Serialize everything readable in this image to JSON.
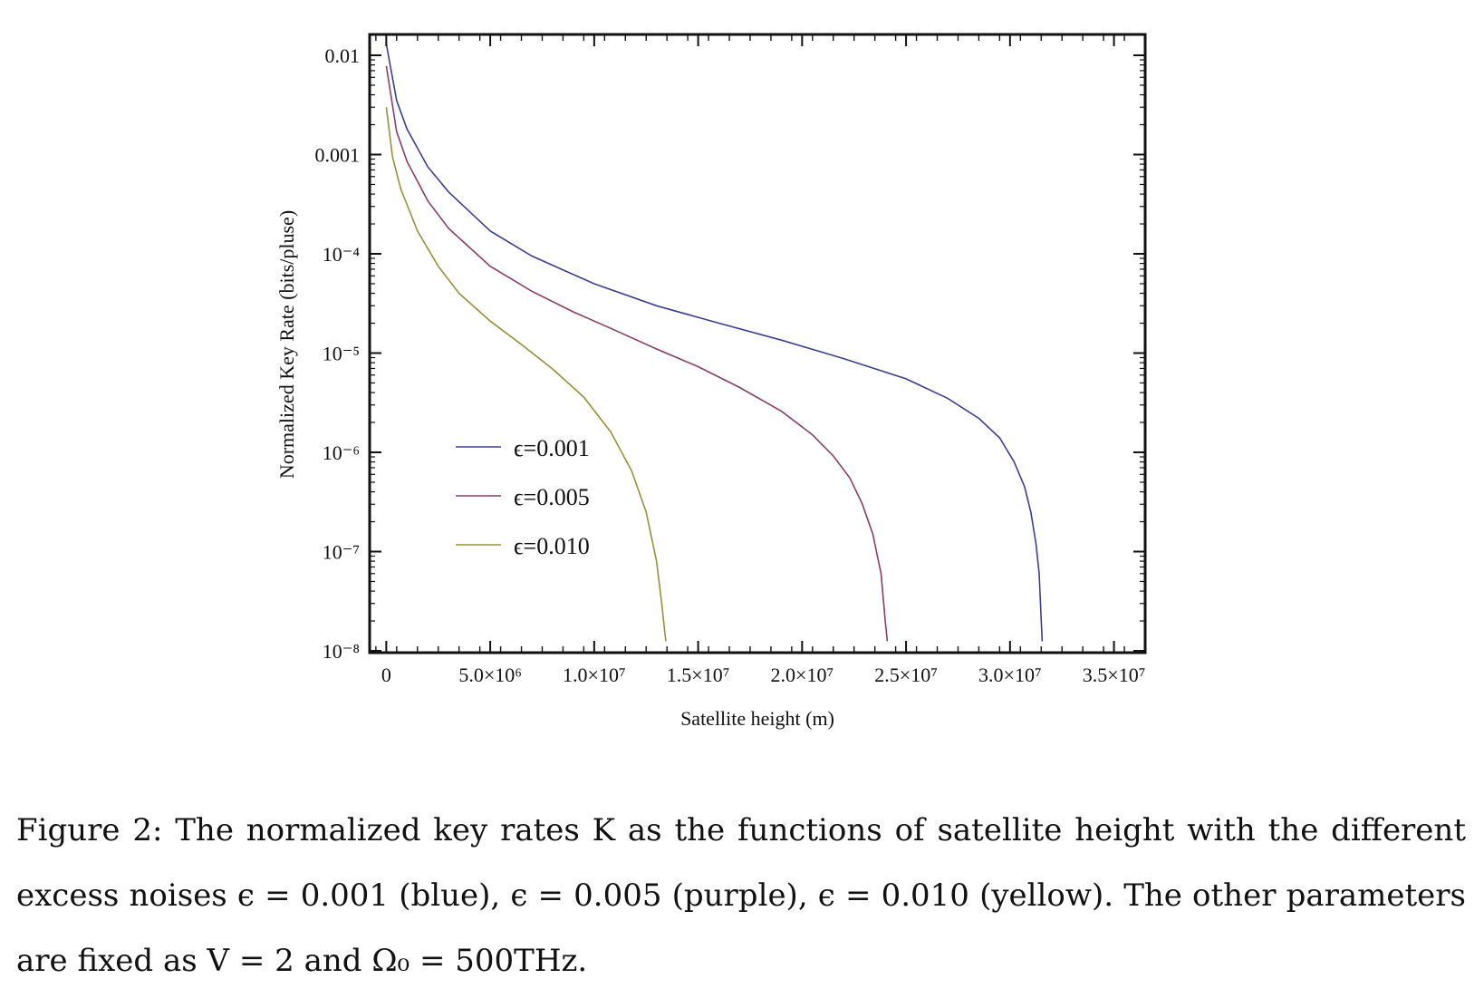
{
  "chart_data": {
    "type": "line",
    "title": "",
    "xlabel": "Satellite height (m)",
    "ylabel": "Normalized Key Rate (bits/pluse)",
    "x_scale": "linear",
    "y_scale": "log",
    "xlim": [
      -800000,
      36500000
    ],
    "ylim": [
      1e-08,
      0.02
    ],
    "x_ticks": [
      {
        "value": 0,
        "label": "0"
      },
      {
        "value": 5000000,
        "label": "5.0×10⁶"
      },
      {
        "value": 10000000,
        "label": "1.0×10⁷"
      },
      {
        "value": 15000000,
        "label": "1.5×10⁷"
      },
      {
        "value": 20000000,
        "label": "2.0×10⁷"
      },
      {
        "value": 25000000,
        "label": "2.5×10⁷"
      },
      {
        "value": 30000000,
        "label": "3.0×10⁷"
      },
      {
        "value": 35000000,
        "label": "3.5×10⁷"
      }
    ],
    "y_ticks": [
      {
        "value": 0.01,
        "label": "0.01"
      },
      {
        "value": 0.001,
        "label": "0.001"
      },
      {
        "value": 0.0001,
        "label": "10⁻⁴"
      },
      {
        "value": 1e-05,
        "label": "10⁻⁵"
      },
      {
        "value": 1e-06,
        "label": "10⁻⁶"
      },
      {
        "value": 1e-07,
        "label": "10⁻⁷"
      },
      {
        "value": 1e-08,
        "label": "10⁻⁸"
      }
    ],
    "legend": "inside-lower-left",
    "grid": false,
    "series": [
      {
        "name": "ϵ=0.001",
        "color": "#3b3f8f",
        "x": [
          0,
          500000,
          1000000,
          2000000,
          3000000,
          5000000,
          7000000,
          10000000,
          13000000,
          16000000,
          19000000,
          22000000,
          25000000,
          27000000,
          28500000,
          29500000,
          30200000,
          30700000,
          31000000,
          31250000,
          31400000,
          31500000,
          31550000
        ],
        "y": [
          0.013,
          0.0035,
          0.0018,
          0.00075,
          0.00042,
          0.00017,
          9.5e-05,
          5e-05,
          3e-05,
          2e-05,
          1.35e-05,
          8.8e-06,
          5.5e-06,
          3.5e-06,
          2.2e-06,
          1.4e-06,
          8e-07,
          4.5e-07,
          2.5e-07,
          1.2e-07,
          6e-08,
          2e-08,
          1.25e-08
        ]
      },
      {
        "name": "ϵ=0.005",
        "color": "#8a3f6a",
        "x": [
          0,
          500000,
          1000000,
          2000000,
          3000000,
          5000000,
          7000000,
          9000000,
          11000000,
          13000000,
          15000000,
          17000000,
          19000000,
          20500000,
          21500000,
          22300000,
          22900000,
          23400000,
          23800000,
          24000000,
          24100000
        ],
        "y": [
          0.0078,
          0.0017,
          0.00085,
          0.00034,
          0.00018,
          7.5e-05,
          4.2e-05,
          2.6e-05,
          1.7e-05,
          1.1e-05,
          7.3e-06,
          4.5e-06,
          2.6e-06,
          1.5e-06,
          9.2e-07,
          5.5e-07,
          3e-07,
          1.5e-07,
          6e-08,
          2e-08,
          1.25e-08
        ]
      },
      {
        "name": "ϵ=0.010",
        "color": "#9c8f3c",
        "x": [
          0,
          300000,
          700000,
          1500000,
          2500000,
          3500000,
          5000000,
          6500000,
          8000000,
          9500000,
          10800000,
          11800000,
          12500000,
          13000000,
          13250000,
          13400000,
          13450000
        ],
        "y": [
          0.003,
          0.00095,
          0.00045,
          0.00017,
          7.5e-05,
          4e-05,
          2.1e-05,
          1.22e-05,
          6.9e-06,
          3.6e-06,
          1.6e-06,
          6.5e-07,
          2.5e-07,
          8e-08,
          3e-08,
          1.5e-08,
          1.25e-08
        ]
      }
    ]
  },
  "caption": {
    "lines": [
      "Figure 2: The normalized key rates K as the functions of satellite height with the different",
      "excess noises ϵ = 0.001 (blue), ϵ = 0.005 (purple), ϵ = 0.010 (yellow). The other parameters",
      "are fixed as V = 2 and Ω₀ = 500THz."
    ]
  }
}
